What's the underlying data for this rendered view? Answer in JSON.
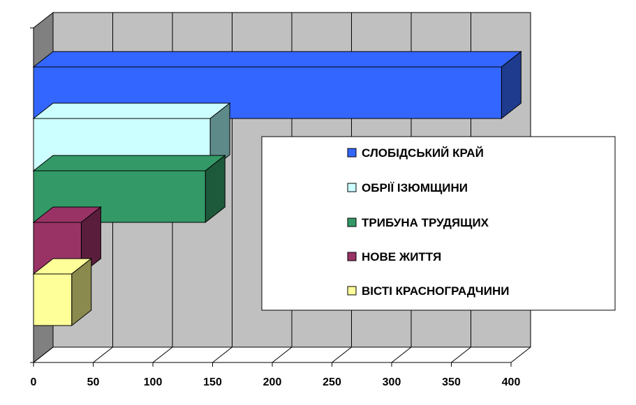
{
  "chart_data": {
    "type": "bar",
    "orientation": "horizontal",
    "three_d": true,
    "title": "",
    "xlabel": "",
    "ylabel": "",
    "xlim": [
      0,
      400
    ],
    "x_ticks": [
      0,
      50,
      100,
      150,
      200,
      250,
      300,
      350,
      400
    ],
    "grid": true,
    "legend_position": "right",
    "series": [
      {
        "name": "СЛОБІДСЬКИЙ КРАЙ",
        "value": 392,
        "color": "#3366FF",
        "side": "#1F3B8E"
      },
      {
        "name": "ОБРІЇ ІЗЮМЩИНИ",
        "value": 148,
        "color": "#CCFFFF",
        "side": "#5F8A8A"
      },
      {
        "name": "ТРИБУНА ТРУДЯЩИХ",
        "value": 144,
        "color": "#339966",
        "side": "#1D5A3C"
      },
      {
        "name": "НОВЕ ЖИТТЯ",
        "value": 40,
        "color": "#993366",
        "side": "#5A1E3C"
      },
      {
        "name": "ВІСТІ КРАСНОГРАДЧИНИ",
        "value": 32,
        "color": "#FFFF99",
        "side": "#8A8A4E"
      }
    ]
  }
}
